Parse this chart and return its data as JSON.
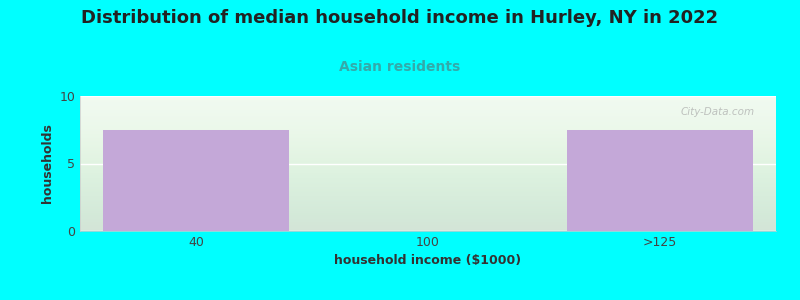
{
  "title": "Distribution of median household income in Hurley, NY in 2022",
  "subtitle": "Asian residents",
  "xlabel": "household income ($1000)",
  "ylabel": "households",
  "categories": [
    "40",
    "100",
    ">125"
  ],
  "values": [
    7.5,
    0,
    7.5
  ],
  "ylim": [
    0,
    10
  ],
  "yticks": [
    0,
    5,
    10
  ],
  "bar_color": "#c4a8d8",
  "background_color": "#00ffff",
  "plot_bg_color": "#f0faf0",
  "title_fontsize": 13,
  "title_color": "#222222",
  "subtitle_color": "#33aaaa",
  "subtitle_fontsize": 10,
  "axis_label_fontsize": 9,
  "tick_fontsize": 9,
  "watermark": "City-Data.com"
}
